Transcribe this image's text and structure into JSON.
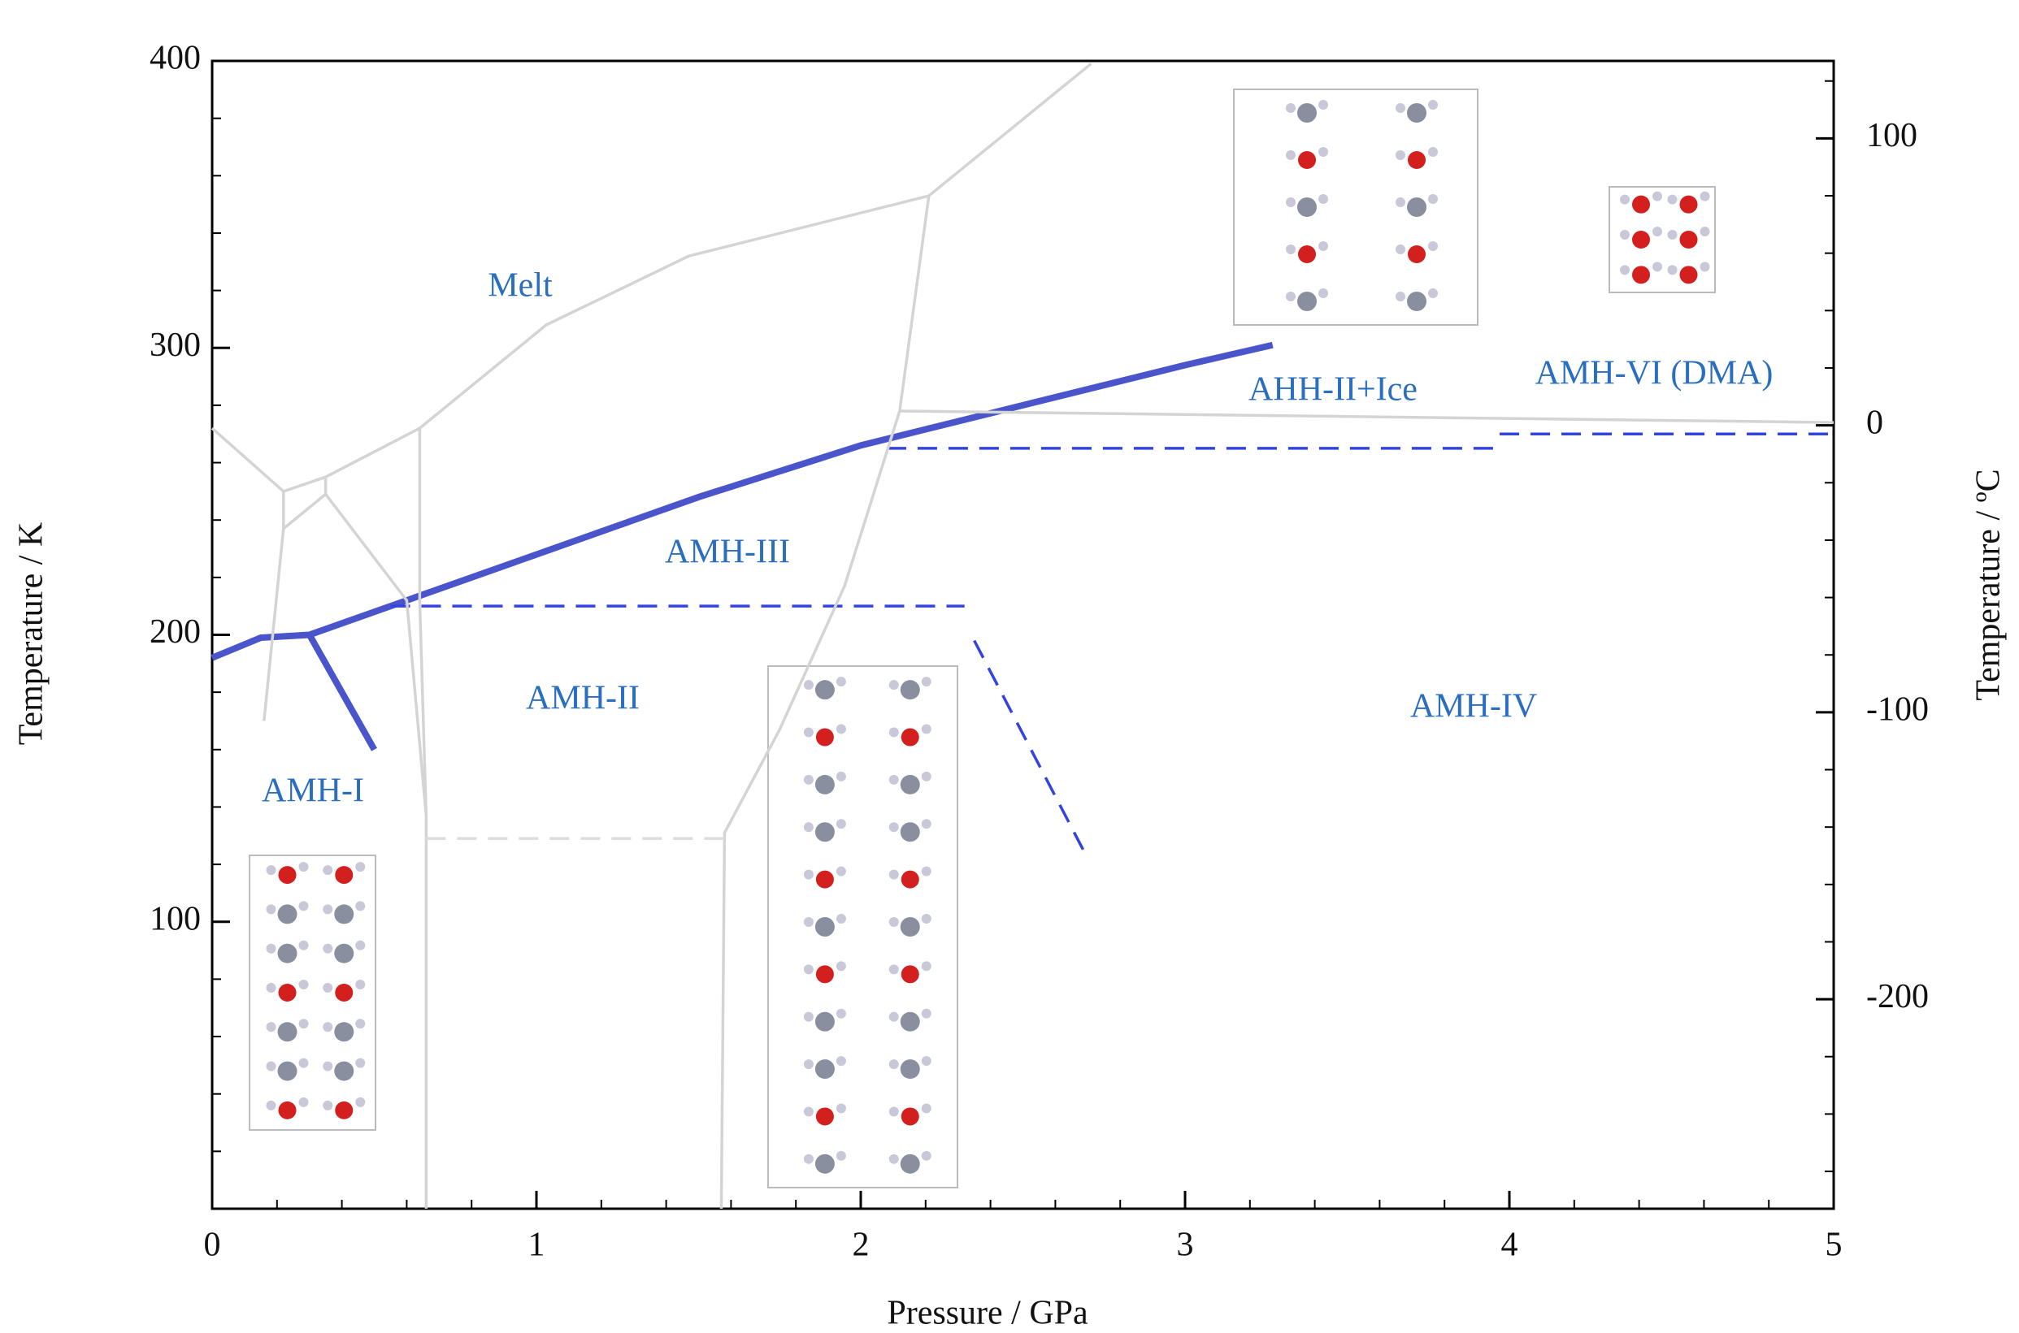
{
  "chart_data": {
    "type": "line",
    "xlabel": "Pressure / GPa",
    "ylabel": "Temperature / K",
    "y2label": "Temperature / ºC",
    "xlim": [
      0,
      5
    ],
    "xticks": [
      0,
      1,
      2,
      3,
      4,
      5
    ],
    "ylim": [
      0,
      400
    ],
    "yticks": [
      100,
      200,
      300,
      400
    ],
    "y2lim": [
      -273,
      127
    ],
    "y2ticks": [
      -200,
      -100,
      0,
      100
    ],
    "annotations": [
      "Melt",
      "AHH-II+Ice",
      "AMH-VI (DMA)",
      "AMH-III",
      "AMH-II",
      "AMH-I",
      "AMH-IV"
    ],
    "lines": [
      {
        "color": "#4a55cc",
        "width": "thick",
        "dash": false,
        "x": [
          0,
          0.15,
          0.3,
          0.6,
          1,
          1.5,
          2,
          2.5,
          3,
          3.27
        ],
        "y": [
          192,
          199,
          200,
          212,
          228,
          248,
          266,
          280,
          294,
          301
        ]
      },
      {
        "color": "#4a55cc",
        "width": "thick",
        "dash": false,
        "x": [
          0.3,
          0.5
        ],
        "y": [
          200,
          160
        ]
      },
      {
        "color": "#3344dd",
        "width": "thin",
        "dash": true,
        "x": [
          0.55,
          2.32
        ],
        "y": [
          210,
          210
        ]
      },
      {
        "color": "#3344dd",
        "width": "thin",
        "dash": true,
        "x": [
          2.08,
          3.97
        ],
        "y": [
          265,
          265
        ]
      },
      {
        "color": "#3344dd",
        "width": "thin",
        "dash": true,
        "x": [
          3.97,
          5
        ],
        "y": [
          270,
          270
        ]
      },
      {
        "color": "#3344dd",
        "width": "thin",
        "dash": true,
        "x": [
          2.35,
          2.7
        ],
        "y": [
          198,
          122
        ]
      },
      {
        "color": "#d4d4d4",
        "width": "thin",
        "dash": false,
        "x": [
          0,
          0.22,
          0.35,
          0.64,
          1.03,
          1.47,
          2.21,
          2.71
        ],
        "y": [
          272,
          250,
          255,
          272,
          308,
          332,
          353,
          399
        ]
      },
      {
        "color": "#d4d4d4",
        "width": "thin",
        "dash": false,
        "x": [
          0.22,
          0.22,
          0.16
        ],
        "y": [
          250,
          237,
          170
        ]
      },
      {
        "color": "#d4d4d4",
        "width": "thin",
        "dash": false,
        "x": [
          0.35,
          0.35,
          0.22
        ],
        "y": [
          255,
          249,
          237
        ]
      },
      {
        "color": "#d4d4d4",
        "width": "thin",
        "dash": false,
        "x": [
          0.35,
          0.6,
          0.66
        ],
        "y": [
          249,
          212,
          137
        ]
      },
      {
        "color": "#d4d4d4",
        "width": "thin",
        "dash": false,
        "x": [
          0.64,
          0.64,
          0.66,
          0.66
        ],
        "y": [
          272,
          212,
          137,
          0
        ]
      },
      {
        "color": "#d4d4d4",
        "width": "thin",
        "dash": false,
        "x": [
          2.21,
          2.12,
          1.95,
          1.75,
          1.58,
          1.57
        ],
        "y": [
          353,
          278,
          217,
          167,
          131,
          0
        ]
      },
      {
        "color": "#d4d4d4",
        "width": "thin",
        "dash": false,
        "x": [
          2.12,
          5
        ],
        "y": [
          278,
          274
        ]
      },
      {
        "color": "#dddddd",
        "width": "thin",
        "dash": true,
        "x": [
          0.66,
          1.58
        ],
        "y": [
          129,
          129
        ]
      }
    ]
  }
}
